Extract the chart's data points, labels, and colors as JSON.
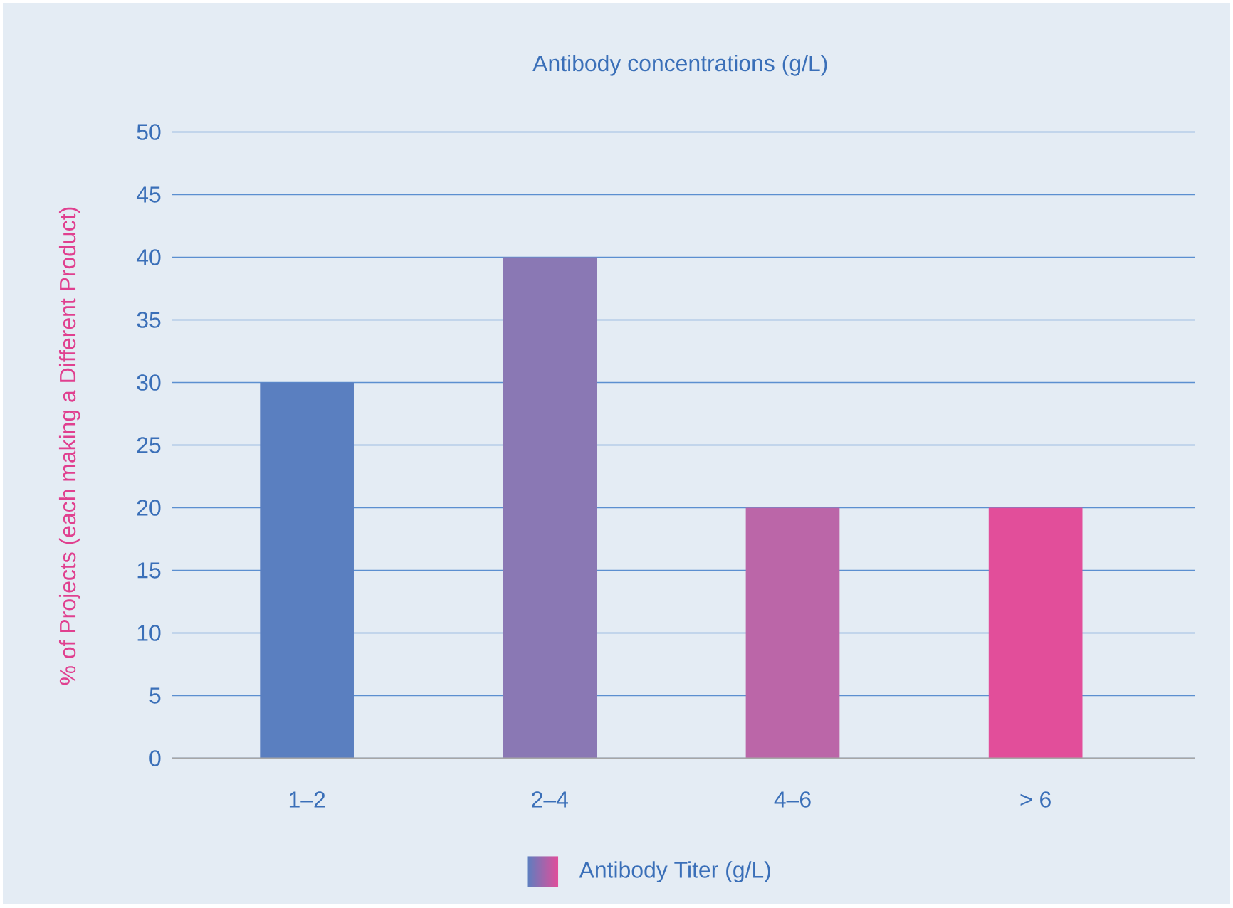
{
  "chart_data": {
    "type": "bar",
    "title": "Antibody concentrations (g/L)",
    "ylabel": "% of Projects  (each making a Different Product)",
    "categories": [
      "1–2",
      "2–4",
      "4–6",
      "> 6"
    ],
    "series": [
      {
        "name": "Antibody Titer (g/L)",
        "colors": [
          "#5a7fc0",
          "#8a78b4",
          "#bb66a8",
          "#e24e9a"
        ],
        "values": [
          30,
          40,
          20,
          20
        ]
      }
    ],
    "ylim": [
      0,
      50
    ],
    "yticks": [
      0,
      5,
      10,
      15,
      20,
      25,
      30,
      35,
      40,
      45,
      50
    ],
    "grid": "y",
    "legend": "bottom"
  }
}
